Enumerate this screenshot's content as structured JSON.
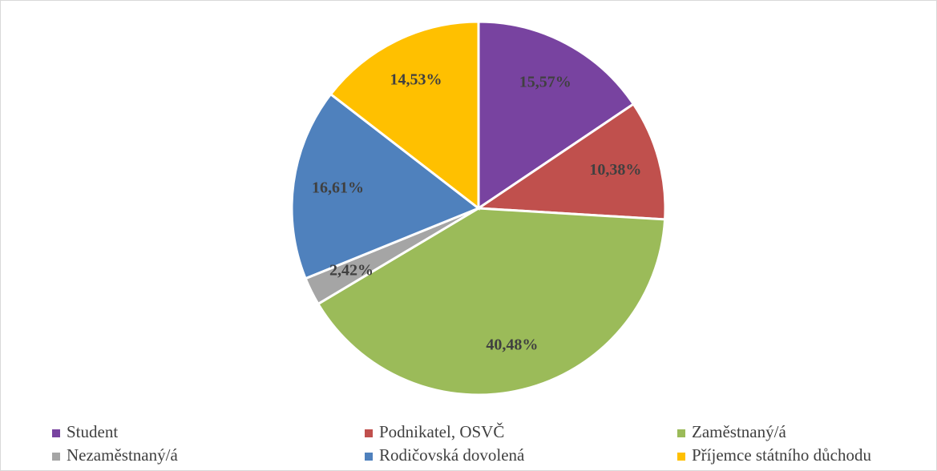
{
  "chart_data": {
    "type": "pie",
    "categories": [
      "Student",
      "Podnikatel, OSVČ",
      "Zaměstnaný/á",
      "Nezaměstnaný/á",
      "Rodičovská dovolená",
      "Příjemce státního důchodu"
    ],
    "values": [
      15.57,
      10.38,
      40.48,
      2.42,
      16.61,
      14.53
    ],
    "value_labels": [
      "15,57%",
      "10,38%",
      "40,48%",
      "2,42%",
      "16,61%",
      "14,53%"
    ],
    "colors": [
      "#7843a0",
      "#c0504d",
      "#9bbb59",
      "#a5a5a5",
      "#4f81bd",
      "#ffc000"
    ],
    "legend": "bottom"
  }
}
